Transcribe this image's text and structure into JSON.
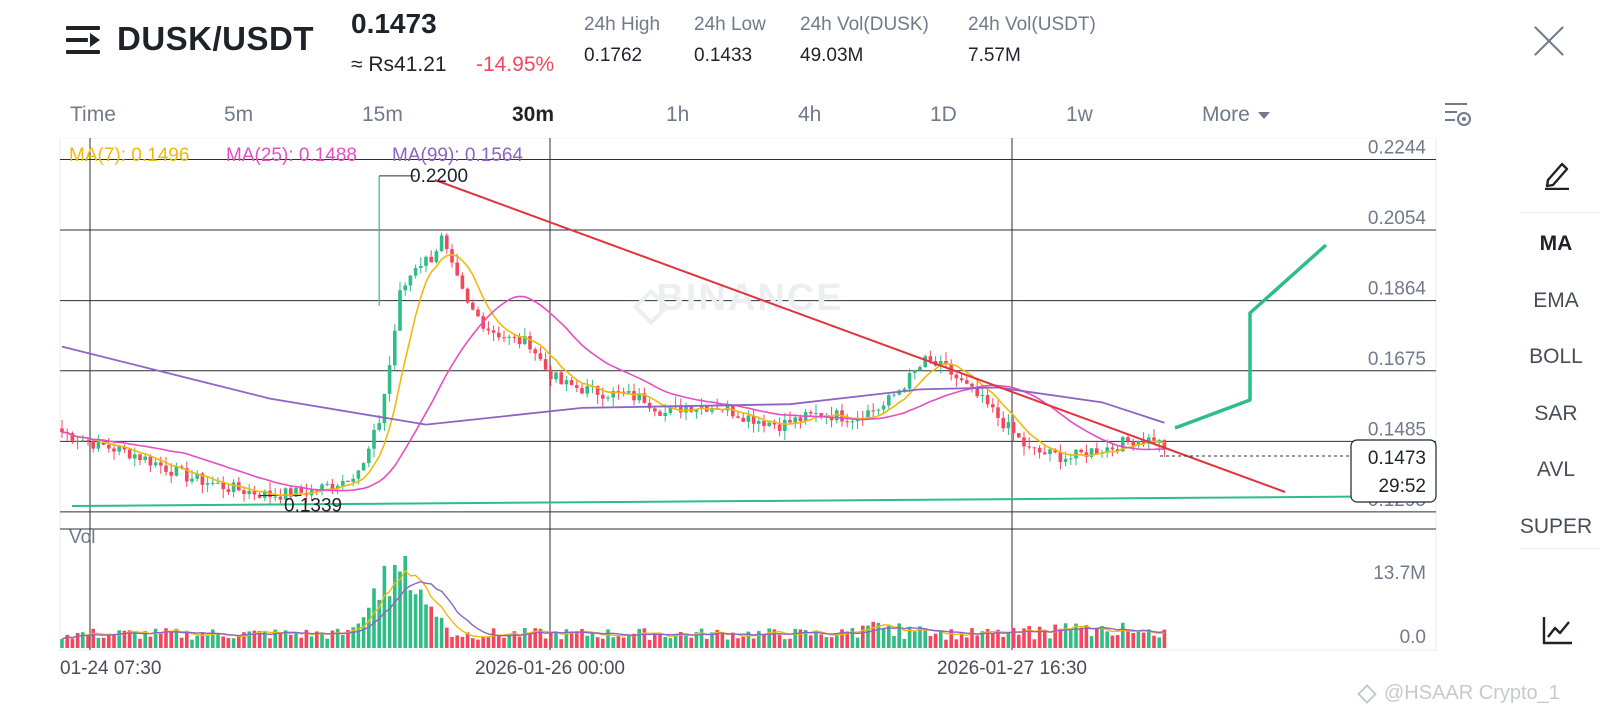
{
  "header": {
    "pair": "DUSK/USDT",
    "price": "0.1473",
    "approx_price": "≈ Rs41.21",
    "change": "-14.95%",
    "stats": [
      {
        "label": "24h High",
        "value": "0.1762"
      },
      {
        "label": "24h Low",
        "value": "0.1433"
      },
      {
        "label": "24h Vol(DUSK)",
        "value": "49.03M"
      },
      {
        "label": "24h Vol(USDT)",
        "value": "7.57M"
      }
    ]
  },
  "timeframes": {
    "items": [
      "Time",
      "5m",
      "15m",
      "30m",
      "1h",
      "4h",
      "1D",
      "1w"
    ],
    "active": "30m",
    "more_label": "More"
  },
  "indicators": {
    "ma7_label": "MA(7): 0.1496",
    "ma25_label": "MA(25): 0.1488",
    "ma99_label": "MA(99): 0.1564"
  },
  "right_panel": {
    "items": [
      "MA",
      "EMA",
      "BOLL",
      "SAR",
      "AVL",
      "SUPER"
    ]
  },
  "colors": {
    "up": "#2ebd85",
    "down": "#f6465d",
    "ma7": "#f0b90b",
    "ma25": "#e44fc0",
    "ma99": "#8e62c6",
    "trendline": "#e0353f",
    "support": "#2ebd85",
    "projection": "#2ebd85"
  },
  "watermark": "@HSAAR Crypto_1",
  "chart_data": {
    "type": "candlestick",
    "price_axis_ticks": [
      "0.2244",
      "0.2054",
      "0.1864",
      "0.1675",
      "0.1485",
      "0.1295"
    ],
    "ylim": [
      0.1265,
      0.2275
    ],
    "volume_axis_ticks": [
      "13.7M",
      "0.0"
    ],
    "volume_label": "Vol",
    "time_labels": [
      "01-24 07:30",
      "2026-01-26 00:00",
      "2026-01-27 16:30"
    ],
    "current_price": "0.1473",
    "countdown": "29:52",
    "annotations": [
      {
        "text": "0.2200",
        "value": 0.22
      },
      {
        "text": "0.1339",
        "value": 0.1339
      }
    ],
    "watermark_text": "BINANCE",
    "close_anchors": [
      [
        0,
        0.151
      ],
      [
        6,
        0.148
      ],
      [
        14,
        0.145
      ],
      [
        24,
        0.139
      ],
      [
        32,
        0.136
      ],
      [
        40,
        0.134
      ],
      [
        48,
        0.135
      ],
      [
        54,
        0.138
      ],
      [
        58,
        0.142
      ],
      [
        61,
        0.154
      ],
      [
        63,
        0.169
      ],
      [
        65,
        0.188
      ],
      [
        68,
        0.196
      ],
      [
        71,
        0.198
      ],
      [
        73,
        0.203
      ],
      [
        75,
        0.195
      ],
      [
        78,
        0.185
      ],
      [
        82,
        0.179
      ],
      [
        86,
        0.176
      ],
      [
        90,
        0.175
      ],
      [
        93,
        0.168
      ],
      [
        96,
        0.164
      ],
      [
        102,
        0.162
      ],
      [
        108,
        0.161
      ],
      [
        112,
        0.16
      ],
      [
        116,
        0.156
      ],
      [
        120,
        0.158
      ],
      [
        126,
        0.158
      ],
      [
        132,
        0.155
      ],
      [
        138,
        0.153
      ],
      [
        146,
        0.156
      ],
      [
        152,
        0.155
      ],
      [
        158,
        0.158
      ],
      [
        162,
        0.164
      ],
      [
        166,
        0.17
      ],
      [
        170,
        0.168
      ],
      [
        174,
        0.163
      ],
      [
        178,
        0.158
      ],
      [
        182,
        0.152
      ],
      [
        186,
        0.146
      ],
      [
        190,
        0.145
      ],
      [
        194,
        0.144
      ],
      [
        198,
        0.146
      ],
      [
        202,
        0.147
      ],
      [
        206,
        0.149
      ],
      [
        210,
        0.149
      ],
      [
        212,
        0.147
      ]
    ],
    "candle_count": 213,
    "ma99_path": [
      [
        0,
        0.174
      ],
      [
        40,
        0.16
      ],
      [
        70,
        0.153
      ],
      [
        100,
        0.1575
      ],
      [
        140,
        0.1585
      ],
      [
        165,
        0.1625
      ],
      [
        180,
        0.163
      ],
      [
        200,
        0.159
      ],
      [
        212,
        0.1535
      ]
    ],
    "volume_spike_index": 65,
    "volume_max": 13.7
  }
}
